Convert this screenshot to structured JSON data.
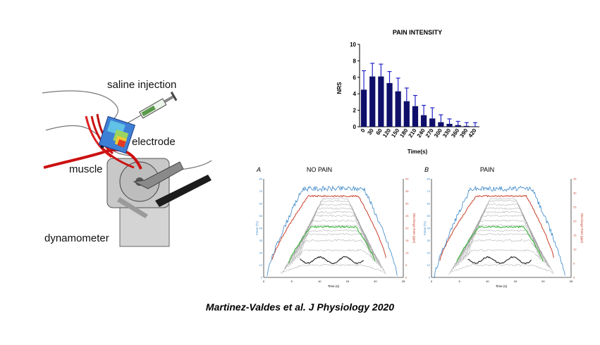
{
  "setup": {
    "labels": {
      "saline": "saline injection",
      "electrode": "electrode",
      "muscle": "muscle",
      "dynamometer": "dynamometer"
    },
    "icons": [
      "syringe-icon",
      "electrode-grid-icon",
      "dynamometer-icon",
      "muscle-fibers-icon"
    ]
  },
  "pain_chart": {
    "chart_data": {
      "type": "bar",
      "title": "PAIN INTENSITY",
      "xlabel": "Time(s)",
      "ylabel": "NRS",
      "ylim": [
        0,
        10
      ],
      "yticks": [
        "0",
        "2",
        "4",
        "6",
        "8",
        "10"
      ],
      "categories": [
        "0",
        "30",
        "60",
        "120",
        "150",
        "180",
        "210",
        "240",
        "270",
        "300",
        "330",
        "360",
        "390",
        "420"
      ],
      "values": [
        4.5,
        6.1,
        6.1,
        5.3,
        4.3,
        3.1,
        2.5,
        1.4,
        1.0,
        0.55,
        0.35,
        0.2,
        0.1,
        0.05
      ],
      "errors": [
        2.3,
        1.6,
        1.5,
        1.4,
        1.6,
        1.6,
        1.3,
        1.2,
        1.3,
        0.9,
        0.6,
        0.45,
        0.4,
        0.45
      ],
      "bar_color": "#0f0f6b",
      "error_color": "#2323c8"
    }
  },
  "force_plots": [
    {
      "panel_letter": "A",
      "title": "NO PAIN",
      "left_axis_label": "Force (%)",
      "right_axis_label": "Discharge Rate (pps)",
      "x_axis_label": "Time (s)",
      "xticks": [
        "0",
        "5",
        "10",
        "15",
        "20",
        "25"
      ],
      "left_ticks": [
        "0",
        "10",
        "20",
        "30",
        "40",
        "50",
        "60",
        "70",
        "80"
      ],
      "right_ticks": [
        "0",
        "5",
        "10",
        "15",
        "20",
        "25",
        "30",
        "35",
        "40"
      ],
      "force_plateau": 72,
      "line_colors": {
        "force": "#3a86c8",
        "rate": "#c8402a",
        "highlight": "#22b022",
        "units": "#999999",
        "low": "#222222"
      }
    },
    {
      "panel_letter": "B",
      "title": "PAIN",
      "left_axis_label": "Force (%)",
      "right_axis_label": "Discharge Rate (pps)",
      "x_axis_label": "Time (s)",
      "xticks": [
        "0",
        "5",
        "10",
        "15",
        "20",
        "25"
      ],
      "left_ticks": [
        "0",
        "10",
        "20",
        "30",
        "40",
        "50",
        "60",
        "70",
        "80"
      ],
      "right_ticks": [
        "0",
        "5",
        "10",
        "15",
        "20",
        "25",
        "30",
        "35"
      ],
      "force_plateau": 72,
      "line_colors": {
        "force": "#3a86c8",
        "rate": "#c8402a",
        "highlight": "#22b022",
        "units": "#999999",
        "low": "#222222"
      }
    }
  ],
  "citation": "Martinez-Valdes et al. J Physiology 2020"
}
